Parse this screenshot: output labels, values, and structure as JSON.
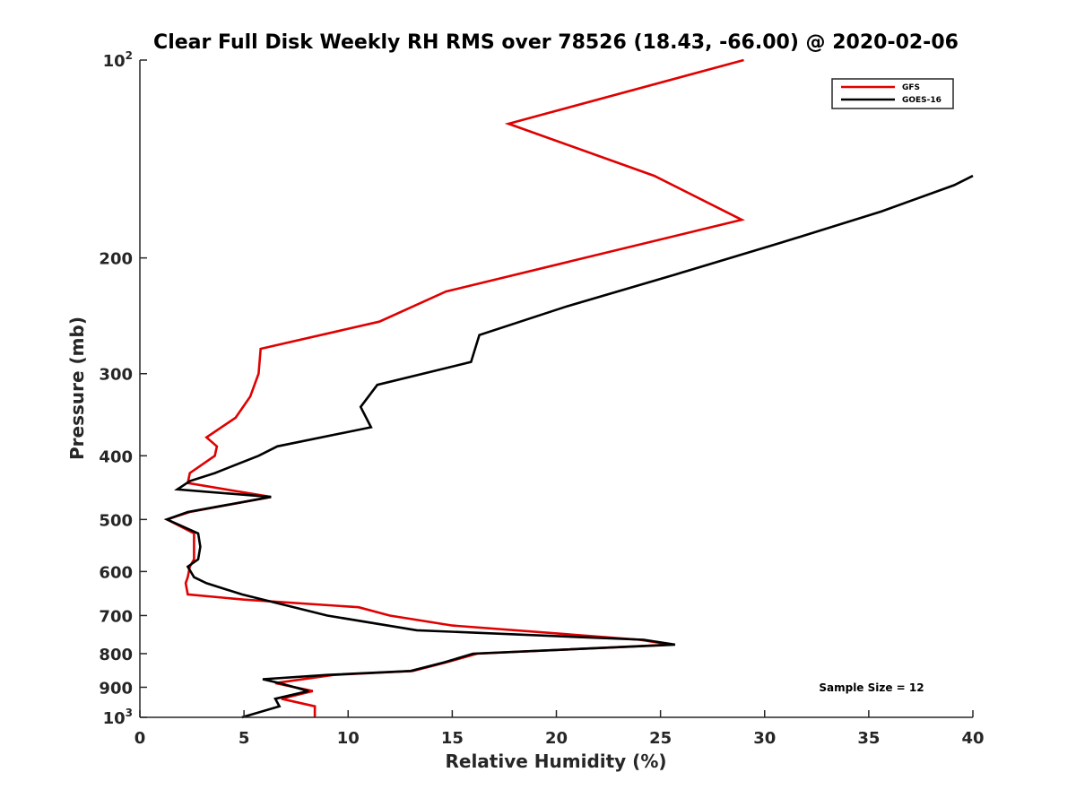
{
  "chart_data": {
    "type": "line",
    "title": "Clear Full Disk Weekly RH RMS over 78526 (18.43, -66.00) @ 2020-02-06",
    "xlabel": "Relative Humidity (%)",
    "ylabel": "Pressure (mb)",
    "xlim": [
      0,
      40
    ],
    "ylim": [
      100,
      1000
    ],
    "y_scale": "log",
    "y_reversed": true,
    "x_ticks": [
      0,
      5,
      10,
      15,
      20,
      25,
      30,
      35,
      40
    ],
    "x_tick_labels": [
      "0",
      "5",
      "10",
      "15",
      "20",
      "25",
      "30",
      "35",
      "40"
    ],
    "y_ticks": [
      {
        "value": 100,
        "base": "10",
        "exp": "2"
      },
      {
        "value": 200,
        "label": "200"
      },
      {
        "value": 300,
        "label": "300"
      },
      {
        "value": 400,
        "label": "400"
      },
      {
        "value": 500,
        "label": "500"
      },
      {
        "value": 600,
        "label": "600"
      },
      {
        "value": 700,
        "label": "700"
      },
      {
        "value": 800,
        "label": "800"
      },
      {
        "value": 900,
        "label": "900"
      },
      {
        "value": 1000,
        "base": "10",
        "exp": "3"
      }
    ],
    "grid": false,
    "legend_position": "top-right",
    "annotation": "Sample Size = 12",
    "series": [
      {
        "name": "GFS",
        "color": "#e00000",
        "points": [
          [
            29.0,
            100
          ],
          [
            17.7,
            125
          ],
          [
            24.7,
            150
          ],
          [
            28.9,
            175
          ],
          [
            14.7,
            225
          ],
          [
            11.5,
            250
          ],
          [
            5.8,
            275
          ],
          [
            5.7,
            300
          ],
          [
            5.3,
            325
          ],
          [
            4.6,
            350
          ],
          [
            3.2,
            375
          ],
          [
            3.7,
            387
          ],
          [
            3.6,
            400
          ],
          [
            2.4,
            425
          ],
          [
            2.3,
            440
          ],
          [
            6.3,
            462
          ],
          [
            2.4,
            487
          ],
          [
            1.3,
            500
          ],
          [
            2.6,
            525
          ],
          [
            2.6,
            550
          ],
          [
            2.6,
            575
          ],
          [
            2.4,
            590
          ],
          [
            2.3,
            612
          ],
          [
            2.2,
            625
          ],
          [
            2.3,
            650
          ],
          [
            5.0,
            662
          ],
          [
            10.5,
            680
          ],
          [
            12.0,
            700
          ],
          [
            15.0,
            725
          ],
          [
            24.0,
            762
          ],
          [
            25.5,
            775
          ],
          [
            16.2,
            800
          ],
          [
            14.7,
            825
          ],
          [
            13.1,
            850
          ],
          [
            9.3,
            862
          ],
          [
            6.5,
            887
          ],
          [
            8.3,
            912
          ],
          [
            6.8,
            937
          ],
          [
            8.4,
            962
          ],
          [
            8.4,
            1000
          ]
        ]
      },
      {
        "name": "GOES-16",
        "color": "#000000",
        "points": [
          [
            40.0,
            150
          ],
          [
            39.1,
            155
          ],
          [
            35.6,
            170
          ],
          [
            30.7,
            190
          ],
          [
            25.7,
            212
          ],
          [
            20.5,
            237
          ],
          [
            16.3,
            262
          ],
          [
            15.9,
            288
          ],
          [
            11.4,
            312
          ],
          [
            10.6,
            337
          ],
          [
            11.1,
            362
          ],
          [
            6.6,
            387
          ],
          [
            5.7,
            400
          ],
          [
            3.6,
            425
          ],
          [
            2.4,
            437
          ],
          [
            1.8,
            450
          ],
          [
            6.3,
            462
          ],
          [
            2.3,
            487
          ],
          [
            1.3,
            500
          ],
          [
            2.8,
            525
          ],
          [
            2.9,
            550
          ],
          [
            2.8,
            575
          ],
          [
            2.3,
            590
          ],
          [
            2.6,
            612
          ],
          [
            3.2,
            625
          ],
          [
            4.9,
            650
          ],
          [
            9.0,
            700
          ],
          [
            13.3,
            737
          ],
          [
            24.2,
            762
          ],
          [
            25.7,
            775
          ],
          [
            16.0,
            800
          ],
          [
            14.6,
            825
          ],
          [
            13.0,
            850
          ],
          [
            9.0,
            862
          ],
          [
            5.9,
            875
          ],
          [
            6.7,
            887
          ],
          [
            8.1,
            912
          ],
          [
            6.5,
            937
          ],
          [
            6.7,
            962
          ],
          [
            4.9,
            1000
          ]
        ]
      }
    ]
  }
}
